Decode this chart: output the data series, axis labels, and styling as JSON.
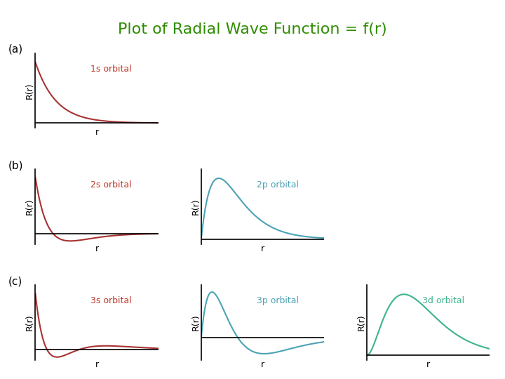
{
  "title": "Plot of Radial Wave Function = f(r)",
  "title_color": "#2e8b00",
  "title_fontsize": 16,
  "background_color": "#ffffff",
  "subplots": [
    {
      "type": "1s",
      "row": 0,
      "col": 0,
      "row_label": "(a)",
      "orbital": "1s orbital",
      "orbital_color": "#c0392b",
      "curve_color": "#a83232"
    },
    {
      "type": "2s",
      "row": 1,
      "col": 0,
      "row_label": "(b)",
      "orbital": "2s orbital",
      "orbital_color": "#c0392b",
      "curve_color": "#a83232"
    },
    {
      "type": "2p",
      "row": 1,
      "col": 1,
      "row_label": null,
      "orbital": "2p orbital",
      "orbital_color": "#4ba3b5",
      "curve_color": "#4ba3b5"
    },
    {
      "type": "3s",
      "row": 2,
      "col": 0,
      "row_label": "(c)",
      "orbital": "3s orbital",
      "orbital_color": "#c0392b",
      "curve_color": "#a83232"
    },
    {
      "type": "3p",
      "row": 2,
      "col": 1,
      "row_label": null,
      "orbital": "3p orbital",
      "orbital_color": "#4ba3b5",
      "curve_color": "#4ba3b5"
    },
    {
      "type": "3d",
      "row": 2,
      "col": 2,
      "row_label": null,
      "orbital": "3d orbital",
      "orbital_color": "#3ab58a",
      "curve_color": "#3ab58a"
    }
  ],
  "xlabel": "r",
  "ylabel": "R(r)",
  "axis_color": "#000000",
  "label_fontsize": 9,
  "orbital_fontsize": 9,
  "row_label_fontsize": 11,
  "linewidth": 1.5
}
